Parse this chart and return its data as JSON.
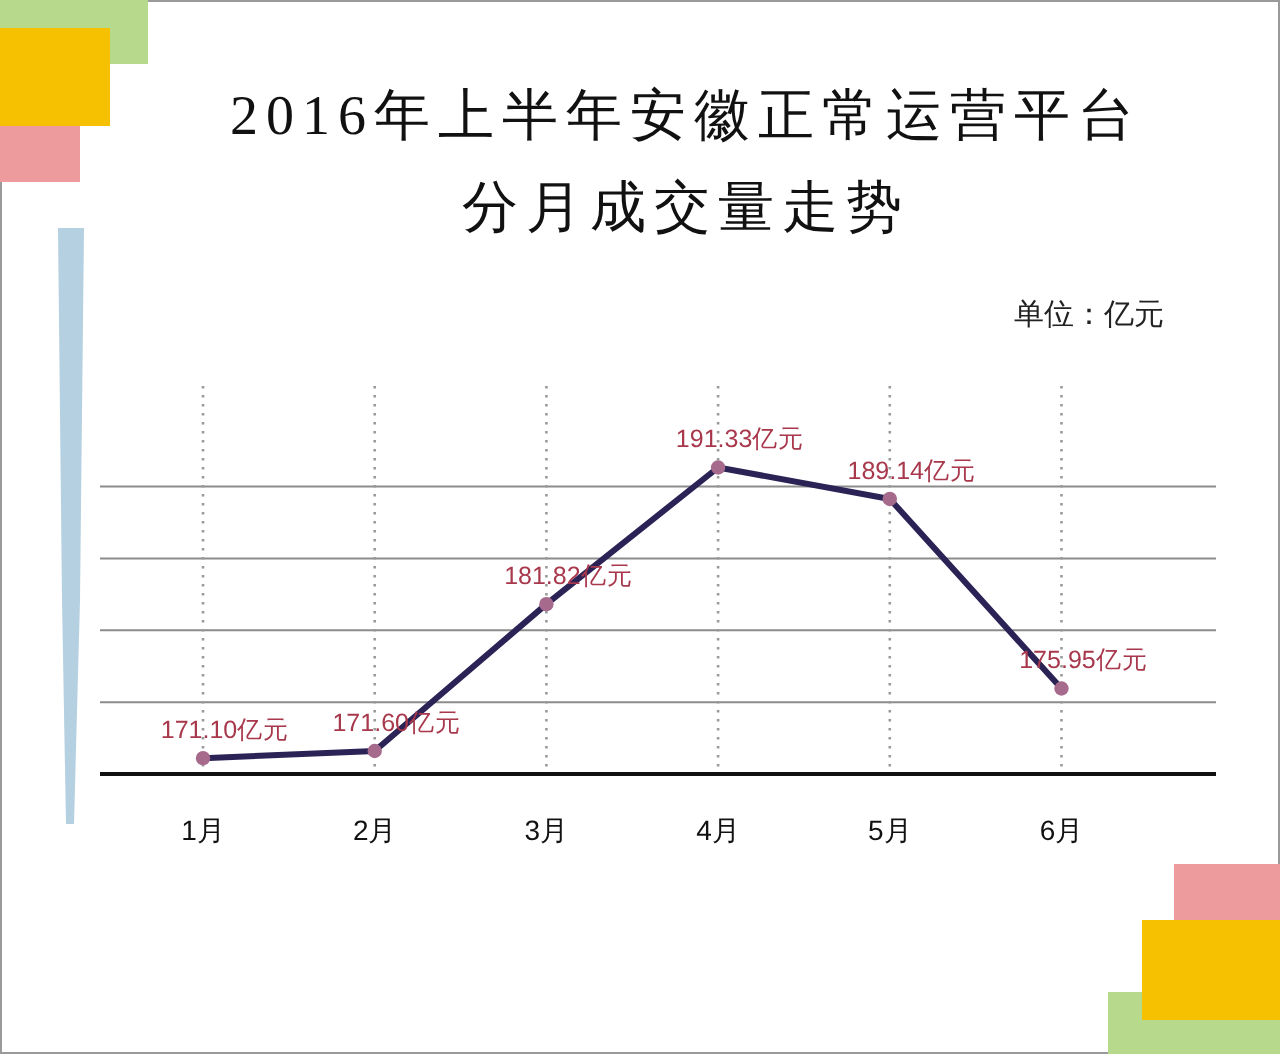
{
  "chart_data": {
    "type": "line",
    "title": "2016年上半年安徽正常运营平台分月成交量走势",
    "annotations": [
      "单位：亿元"
    ],
    "categories": [
      "1月",
      "2月",
      "3月",
      "4月",
      "5月",
      "6月"
    ],
    "series": [
      {
        "color": "#2b2356",
        "values": [
          171.1,
          171.6,
          181.82,
          191.33,
          189.14,
          175.95
        ],
        "value_labels": [
          "171.10亿元",
          "171.60亿元",
          "181.82亿元",
          "191.33亿元",
          "189.14亿元",
          "175.95亿元"
        ]
      }
    ],
    "ylim": [
      170,
      197
    ],
    "yticks": [
      {
        "value": 170,
        "label": null
      },
      {
        "value": 175,
        "label": null
      },
      {
        "value": 180,
        "label": null
      },
      {
        "value": 185,
        "label": null
      },
      {
        "value": 190,
        "label": null
      }
    ],
    "grid": true,
    "marker": "circle",
    "line_style": "solid",
    "tick_labels": "x"
  }
}
